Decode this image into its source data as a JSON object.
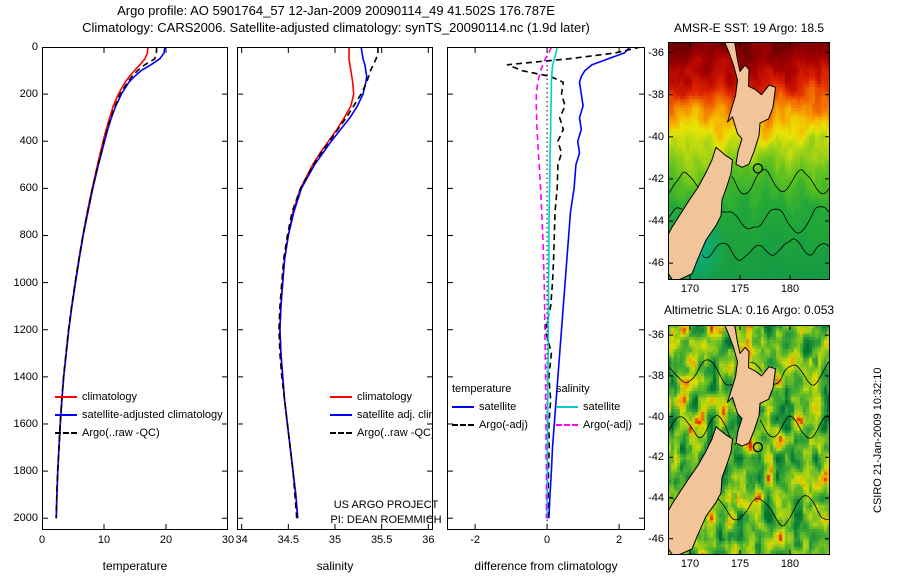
{
  "header": {
    "line1": "Argo profile: AO 5901764_57 12-Jan-2009 20090114_49 41.502S 176.787E",
    "line2": "Climatology: CARS2006. Satellite-adjusted climatology: synTS_20090114.nc (1.9d later)"
  },
  "footer": {
    "project": "US ARGO PROJECT",
    "pi": "PI: DEAN ROEMMICH",
    "credit": "CSIRO 21-Jan-2009 10:32:10"
  },
  "chart_data": [
    {
      "type": "line",
      "id": "temperature",
      "xlabel": "temperature",
      "xlim": [
        0,
        30
      ],
      "x_ticks": [
        0,
        10,
        20,
        30
      ],
      "ylim": [
        0,
        2050
      ],
      "y_ticks": [
        0,
        200,
        400,
        600,
        800,
        1000,
        1200,
        1400,
        1600,
        1800,
        2000
      ],
      "y_tick_labels": true,
      "depths": [
        0,
        25,
        50,
        75,
        100,
        125,
        150,
        200,
        250,
        300,
        350,
        400,
        450,
        500,
        600,
        700,
        800,
        900,
        1000,
        1100,
        1200,
        1300,
        1400,
        1500,
        1600,
        1700,
        1800,
        1900,
        2000
      ],
      "legend": [
        {
          "label": "climatology",
          "color": "#ff0000",
          "dash": "solid"
        },
        {
          "label": "satellite-adjusted climatology",
          "color": "#0000ff",
          "dash": "solid"
        },
        {
          "label": "Argo(..raw -QC)",
          "color": "#000000",
          "dash": "dashed"
        }
      ],
      "series": [
        {
          "name": "climatology",
          "color": "#ff0000",
          "dash": "solid",
          "values": [
            17.1,
            17.0,
            16.6,
            15.8,
            14.9,
            14.1,
            13.4,
            12.3,
            11.5,
            10.9,
            10.35,
            9.85,
            9.4,
            8.95,
            8.1,
            7.3,
            6.6,
            5.95,
            5.35,
            4.8,
            4.3,
            3.9,
            3.5,
            3.2,
            2.95,
            2.75,
            2.55,
            2.4,
            2.3
          ]
        },
        {
          "name": "satellite-adjusted climatology",
          "color": "#0000ff",
          "dash": "solid",
          "values": [
            19.8,
            19.7,
            19.0,
            17.6,
            16.0,
            14.9,
            14.0,
            12.8,
            11.9,
            11.2,
            10.6,
            10.1,
            9.6,
            9.1,
            8.2,
            7.4,
            6.65,
            6.0,
            5.4,
            4.82,
            4.32,
            3.9,
            3.5,
            3.2,
            2.95,
            2.75,
            2.55,
            2.4,
            2.3
          ]
        },
        {
          "name": "Argo(..raw -QC)",
          "color": "#000000",
          "dash": "dashed",
          "values": [
            18.5,
            18.45,
            18.2,
            16.6,
            15.4,
            14.5,
            13.8,
            12.6,
            11.8,
            11.1,
            10.5,
            10.0,
            9.55,
            9.05,
            8.15,
            7.35,
            6.6,
            5.95,
            5.35,
            4.78,
            4.28,
            3.87,
            3.47,
            3.17,
            2.92,
            2.72,
            2.52,
            2.38,
            2.27
          ]
        }
      ]
    },
    {
      "type": "line",
      "id": "salinity",
      "xlabel": "salinity",
      "xlim": [
        33.95,
        36.05
      ],
      "x_ticks": [
        34,
        34.5,
        35,
        35.5,
        36
      ],
      "ylim": [
        0,
        2050
      ],
      "y_ticks": [
        0,
        200,
        400,
        600,
        800,
        1000,
        1200,
        1400,
        1600,
        1800,
        2000
      ],
      "y_tick_labels": false,
      "depths": [
        0,
        25,
        50,
        75,
        100,
        125,
        150,
        200,
        250,
        300,
        350,
        400,
        450,
        500,
        600,
        700,
        800,
        900,
        1000,
        1100,
        1200,
        1300,
        1400,
        1500,
        1600,
        1700,
        1800,
        1900,
        2000
      ],
      "legend": [
        {
          "label": "climatology",
          "color": "#ff0000",
          "dash": "solid"
        },
        {
          "label": "satellite adj. clim.",
          "color": "#0000ff",
          "dash": "solid"
        },
        {
          "label": "Argo(..raw -QC)",
          "color": "#000000",
          "dash": "dashed"
        }
      ],
      "series": [
        {
          "name": "climatology",
          "color": "#ff0000",
          "dash": "solid",
          "values": [
            35.15,
            35.15,
            35.15,
            35.16,
            35.17,
            35.18,
            35.19,
            35.2,
            35.17,
            35.1,
            35.02,
            34.93,
            34.84,
            34.76,
            34.63,
            34.55,
            34.5,
            34.46,
            34.44,
            34.42,
            34.41,
            34.42,
            34.44,
            34.46,
            34.49,
            34.52,
            34.55,
            34.58,
            34.6
          ]
        },
        {
          "name": "satellite adj. clim.",
          "color": "#0000ff",
          "dash": "solid",
          "values": [
            35.28,
            35.29,
            35.3,
            35.32,
            35.33,
            35.34,
            35.33,
            35.3,
            35.24,
            35.16,
            35.06,
            34.96,
            34.87,
            34.78,
            34.64,
            34.56,
            34.5,
            34.46,
            34.44,
            34.42,
            34.41,
            34.42,
            34.44,
            34.46,
            34.49,
            34.52,
            34.55,
            34.58,
            34.6
          ]
        },
        {
          "name": "Argo(..raw -QC)",
          "color": "#000000",
          "dash": "dashed",
          "values": [
            35.46,
            35.46,
            35.44,
            35.41,
            35.38,
            35.36,
            35.34,
            35.28,
            35.2,
            35.12,
            35.03,
            34.94,
            34.85,
            34.77,
            34.63,
            34.54,
            34.49,
            34.45,
            34.43,
            34.41,
            34.4,
            34.41,
            34.43,
            34.46,
            34.49,
            34.52,
            34.55,
            34.57,
            34.59
          ]
        }
      ]
    },
    {
      "type": "line",
      "id": "difference",
      "xlabel": "difference from climatology",
      "xlim": [
        -2.78,
        2.72
      ],
      "x_ticks": [
        -2,
        0,
        2
      ],
      "ylim": [
        0,
        2050
      ],
      "y_ticks": [
        0,
        200,
        400,
        600,
        800,
        1000,
        1200,
        1400,
        1600,
        1800,
        2000
      ],
      "y_tick_labels": false,
      "zero_line": true,
      "depths": [
        0,
        25,
        50,
        75,
        100,
        125,
        150,
        200,
        250,
        300,
        350,
        400,
        450,
        500,
        600,
        700,
        800,
        900,
        1000,
        1100,
        1200,
        1300,
        1400,
        1500,
        1600,
        1700,
        1800,
        1900,
        2000
      ],
      "legend_groups": [
        {
          "header": "temperature",
          "items": [
            {
              "label": "satellite",
              "color": "#0000ff",
              "dash": "solid"
            },
            {
              "label": "Argo(-adj)",
              "color": "#000000",
              "dash": "dashed"
            }
          ]
        },
        {
          "header": "salinity",
          "items": [
            {
              "label": "satellite",
              "color": "#00cccc",
              "dash": "solid"
            },
            {
              "label": "Argo(-adj)",
              "color": "#ff00ff",
              "dash": "dashed"
            }
          ]
        }
      ],
      "series": [
        {
          "name": "temperature satellite",
          "color": "#0000ff",
          "dash": "solid",
          "values": [
            2.3,
            2.15,
            1.7,
            1.25,
            1.05,
            0.95,
            0.9,
            0.95,
            1.0,
            0.9,
            0.95,
            0.85,
            0.9,
            0.8,
            0.75,
            0.65,
            0.6,
            0.55,
            0.5,
            0.45,
            0.4,
            0.35,
            0.3,
            0.25,
            0.2,
            0.15,
            0.12,
            0.08,
            0.05
          ]
        },
        {
          "name": "temperature Argo(-adj)",
          "color": "#000000",
          "dash": "dashed",
          "values": [
            2.6,
            1.9,
            0.6,
            -1.1,
            -0.7,
            0.1,
            0.45,
            0.4,
            0.5,
            0.35,
            0.45,
            0.3,
            0.4,
            0.3,
            0.28,
            0.22,
            0.2,
            0.18,
            0.15,
            0.1,
            -0.05,
            0.12,
            0.05,
            0.1,
            0.05,
            0.06,
            0.04,
            0.03,
            0.02
          ]
        },
        {
          "name": "salinity satellite",
          "color": "#00cccc",
          "dash": "solid",
          "values": [
            0.28,
            0.25,
            0.2,
            0.16,
            0.14,
            0.13,
            0.12,
            0.12,
            0.11,
            0.1,
            0.1,
            0.09,
            0.08,
            0.08,
            0.07,
            0.06,
            0.05,
            0.05,
            0.04,
            0.04,
            0.03,
            0.03,
            0.02,
            0.02,
            0.02,
            0.01,
            0.01,
            0.0,
            0.0
          ]
        },
        {
          "name": "salinity Argo(-adj)",
          "color": "#ff00ff",
          "dash": "dashed",
          "values": [
            0.12,
            0.05,
            -0.05,
            -0.12,
            -0.18,
            -0.22,
            -0.26,
            -0.3,
            -0.3,
            -0.29,
            -0.28,
            -0.26,
            -0.24,
            -0.22,
            -0.18,
            -0.15,
            -0.12,
            -0.1,
            -0.08,
            -0.07,
            -0.06,
            -0.05,
            -0.04,
            -0.04,
            -0.03,
            -0.03,
            -0.02,
            -0.02,
            -0.02
          ]
        }
      ]
    },
    {
      "type": "heatmap",
      "id": "sst",
      "title": "AMSR-E SST: 19 Argo: 18.5",
      "x_ticks": [
        170,
        175,
        180
      ],
      "y_ticks": [
        -36,
        -38,
        -40,
        -42,
        -44,
        -46
      ],
      "lon_range": [
        167.8,
        184.0
      ],
      "lat_range": [
        -46.8,
        -35.5
      ],
      "land_color": "#f2c49a",
      "coast_color": "#000000",
      "palette": [
        [
          0.0,
          "#159a44"
        ],
        [
          0.3,
          "#23a838"
        ],
        [
          0.46,
          "#5fc21e"
        ],
        [
          0.54,
          "#a8d415"
        ],
        [
          0.6,
          "#e8e405"
        ],
        [
          0.66,
          "#f7b300"
        ],
        [
          0.74,
          "#f26a00"
        ],
        [
          0.82,
          "#dc2000"
        ],
        [
          0.9,
          "#a80000"
        ],
        [
          1.0,
          "#6f0000"
        ]
      ],
      "float_marker": {
        "lon": 176.787,
        "lat": -41.502
      }
    },
    {
      "type": "heatmap",
      "id": "sla",
      "title": "Altimetric SLA: 0.16 Argo: 0.053",
      "x_ticks": [
        170,
        175,
        180
      ],
      "y_ticks": [
        -36,
        -38,
        -40,
        -42,
        -44,
        -46
      ],
      "lon_range": [
        167.8,
        184.0
      ],
      "lat_range": [
        -46.8,
        -35.5
      ],
      "land_color": "#f2c49a",
      "coast_color": "#000000",
      "palette": [
        [
          0.0,
          "#00702e"
        ],
        [
          0.25,
          "#23963c"
        ],
        [
          0.45,
          "#57b52a"
        ],
        [
          0.62,
          "#97cc1a"
        ],
        [
          0.78,
          "#d8dd00"
        ],
        [
          0.9,
          "#f0a400"
        ],
        [
          1.0,
          "#e03000"
        ]
      ],
      "float_marker": {
        "lon": 176.787,
        "lat": -41.502
      }
    }
  ]
}
